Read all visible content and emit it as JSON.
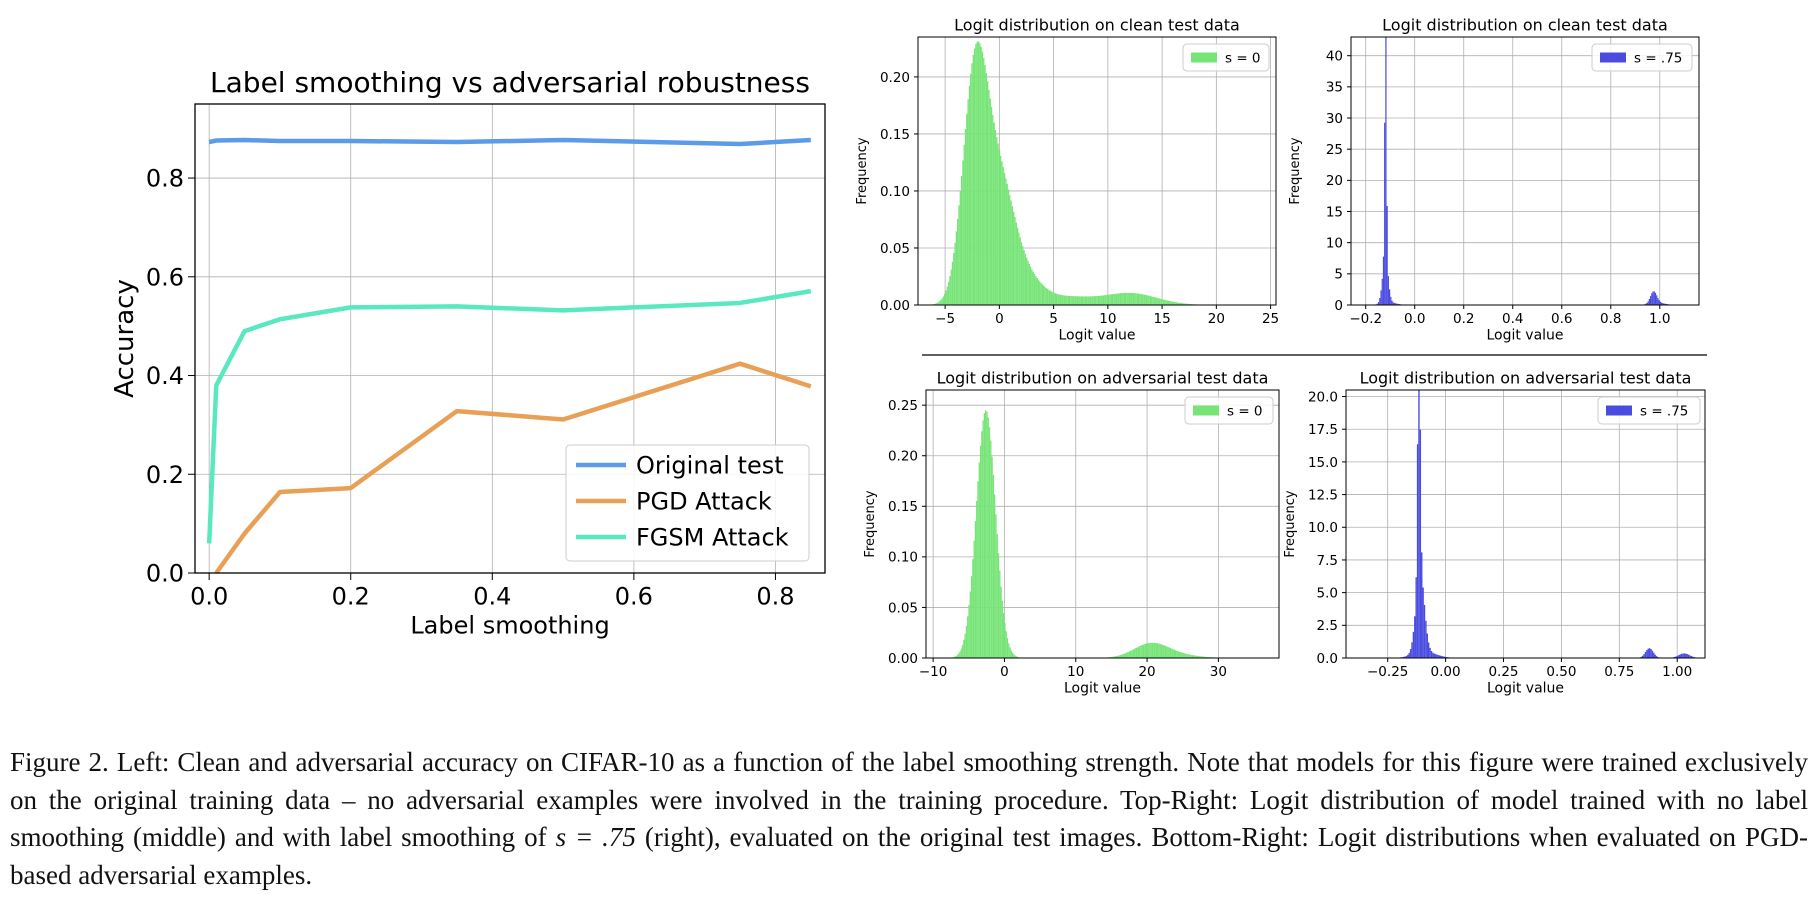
{
  "chart_data": [
    {
      "type": "line",
      "title": "Label smoothing vs adversarial robustness",
      "xlabel": "Label smoothing",
      "ylabel": "Accuracy",
      "xlim": [
        -0.02,
        0.87
      ],
      "ylim": [
        0.0,
        0.95
      ],
      "xticks": [
        0.0,
        0.2,
        0.4,
        0.6,
        0.8
      ],
      "xtick_labels": [
        "0.0",
        "0.2",
        "0.4",
        "0.6",
        "0.8"
      ],
      "yticks": [
        0.0,
        0.2,
        0.4,
        0.6,
        0.8
      ],
      "ytick_labels": [
        "0.0",
        "0.2",
        "0.4",
        "0.6",
        "0.8"
      ],
      "grid": true,
      "legend": "lower-right",
      "series": [
        {
          "name": "Original test",
          "color": "#5b9be8",
          "x": [
            0.0,
            0.01,
            0.05,
            0.1,
            0.2,
            0.35,
            0.5,
            0.75,
            0.85
          ],
          "y": [
            0.873,
            0.876,
            0.877,
            0.875,
            0.875,
            0.873,
            0.877,
            0.869,
            0.877
          ]
        },
        {
          "name": "PGD Attack",
          "color": "#e8a057",
          "x": [
            0.01,
            0.05,
            0.1,
            0.2,
            0.35,
            0.5,
            0.75,
            0.85
          ],
          "y": [
            0.0,
            0.08,
            0.164,
            0.172,
            0.328,
            0.311,
            0.424,
            0.378
          ]
        },
        {
          "name": "FGSM Attack",
          "color": "#5ae8c0",
          "x": [
            0.0,
            0.01,
            0.05,
            0.1,
            0.2,
            0.35,
            0.5,
            0.75,
            0.85
          ],
          "y": [
            0.06,
            0.38,
            0.49,
            0.514,
            0.538,
            0.54,
            0.532,
            0.547,
            0.571
          ]
        }
      ]
    },
    {
      "type": "histogram",
      "title": "Logit distribution on clean test data",
      "xlabel": "Logit value",
      "ylabel": "Frequency",
      "xlim": [
        -7.5,
        25.5
      ],
      "ylim": [
        0,
        0.235
      ],
      "xticks": [
        -5,
        0,
        5,
        10,
        15,
        20,
        25
      ],
      "xtick_labels": [
        "−5",
        "0",
        "5",
        "10",
        "15",
        "20",
        "25"
      ],
      "yticks": [
        0.0,
        0.05,
        0.1,
        0.15,
        0.2
      ],
      "ytick_labels": [
        "0.00",
        "0.05",
        "0.10",
        "0.15",
        "0.20"
      ],
      "grid": true,
      "legend": "top-right",
      "series": [
        {
          "name": "s = 0",
          "color": "#77e477",
          "bin_width": 0.12,
          "components": [
            {
              "mean": -2.2,
              "sd": 1.15,
              "peak": 0.205
            },
            {
              "mean": 0.0,
              "sd": 1.3,
              "peak": 0.085
            },
            {
              "mean": 1.8,
              "sd": 1.8,
              "peak": 0.03
            },
            {
              "mean": 6.5,
              "sd": 2.0,
              "peak": 0.006
            },
            {
              "mean": 12.0,
              "sd": 2.5,
              "peak": 0.0105
            }
          ]
        }
      ]
    },
    {
      "type": "histogram",
      "title": "Logit distribution on clean test data",
      "xlabel": "Logit value",
      "ylabel": "Frequency",
      "xlim": [
        -0.26,
        1.16
      ],
      "ylim": [
        0,
        43
      ],
      "xticks": [
        -0.2,
        0.0,
        0.2,
        0.4,
        0.6,
        0.8,
        1.0
      ],
      "xtick_labels": [
        "−0.2",
        "0.0",
        "0.2",
        "0.4",
        "0.6",
        "0.8",
        "1.0"
      ],
      "yticks": [
        0,
        5,
        10,
        15,
        20,
        25,
        30,
        35,
        40
      ],
      "ytick_labels": [
        "0",
        "5",
        "10",
        "15",
        "20",
        "25",
        "30",
        "35",
        "40"
      ],
      "grid": true,
      "legend": "top-right",
      "series": [
        {
          "name": "s = .75",
          "color": "#4a4ce0",
          "bin_width": 0.005,
          "components": [
            {
              "mean": -0.1185,
              "sd": 0.0035,
              "peak": 41.5
            },
            {
              "mean": -0.12,
              "sd": 0.011,
              "peak": 7.5
            },
            {
              "mean": -0.105,
              "sd": 0.03,
              "peak": 0.4
            },
            {
              "mean": 0.975,
              "sd": 0.013,
              "peak": 1.9
            },
            {
              "mean": 0.99,
              "sd": 0.03,
              "peak": 0.35
            }
          ]
        }
      ]
    },
    {
      "type": "histogram",
      "title": "Logit distribution on adversarial test data",
      "xlabel": "Logit value",
      "ylabel": "Frequency",
      "xlim": [
        -11,
        38.5
      ],
      "ylim": [
        0,
        0.265
      ],
      "xticks": [
        -10,
        0,
        10,
        20,
        30
      ],
      "xtick_labels": [
        "−10",
        "0",
        "10",
        "20",
        "30"
      ],
      "yticks": [
        0.0,
        0.05,
        0.1,
        0.15,
        0.2,
        0.25
      ],
      "ytick_labels": [
        "0.00",
        "0.05",
        "0.10",
        "0.15",
        "0.20",
        "0.25"
      ],
      "grid": true,
      "legend": "top-right",
      "series": [
        {
          "name": "s = 0",
          "color": "#77e477",
          "bin_width": 0.18,
          "components": [
            {
              "mean": -2.6,
              "sd": 1.35,
              "peak": 0.245
            },
            {
              "mean": 20.5,
              "sd": 2.4,
              "peak": 0.0135
            },
            {
              "mean": 24.0,
              "sd": 3.0,
              "peak": 0.003
            }
          ]
        }
      ]
    },
    {
      "type": "histogram",
      "title": "Logit distribution on adversarial test data",
      "xlabel": "Logit value",
      "ylabel": "Frequency",
      "xlim": [
        -0.43,
        1.12
      ],
      "ylim": [
        0,
        20.5
      ],
      "xticks": [
        -0.25,
        0.0,
        0.25,
        0.5,
        0.75,
        1.0
      ],
      "xtick_labels": [
        "−0.25",
        "0.00",
        "0.25",
        "0.50",
        "0.75",
        "1.00"
      ],
      "yticks": [
        0,
        2.5,
        5,
        7.5,
        10,
        12.5,
        15,
        17.5,
        20
      ],
      "ytick_labels": [
        "0.0",
        "2.5",
        "5.0",
        "7.5",
        "10.0",
        "12.5",
        "15.0",
        "17.5",
        "20.0"
      ],
      "grid": true,
      "legend": "top-right",
      "series": [
        {
          "name": "s = .75",
          "color": "#4a4ce0",
          "bin_width": 0.006,
          "components": [
            {
              "mean": -0.115,
              "sd": 0.0055,
              "peak": 19.5
            },
            {
              "mean": -0.11,
              "sd": 0.018,
              "peak": 6.3
            },
            {
              "mean": -0.09,
              "sd": 0.05,
              "peak": 0.45
            },
            {
              "mean": 0.88,
              "sd": 0.017,
              "peak": 0.75
            },
            {
              "mean": 1.03,
              "sd": 0.024,
              "peak": 0.35
            }
          ]
        }
      ]
    }
  ],
  "caption": {
    "part1": "Figure 2.  Left: Clean and adversarial accuracy on CIFAR-10 as a function of the label smoothing strength. Note that models for this figure were trained exclusively on the original training data – no adversarial examples were involved in the training procedure. Top-Right: Logit distribution of model trained with no label smoothing (middle) and with label smoothing of ",
    "math": "s = .75",
    "part2": " (right), evaluated on the original test images. Bottom-Right: Logit distributions when evaluated on PGD-based adversarial examples."
  }
}
